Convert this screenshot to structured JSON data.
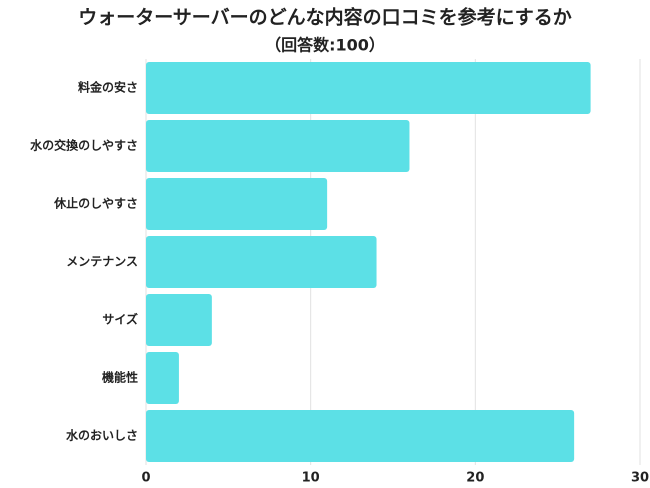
{
  "chart_data": {
    "type": "bar",
    "orientation": "horizontal",
    "title": "ウォーターサーバーのどんな内容の口コミを参考にするか",
    "subtitle": "（回答数:100）",
    "categories": [
      "料金の安さ",
      "水の交換のしやすさ",
      "休止のしやすさ",
      "メンテナンス",
      "サイズ",
      "機能性",
      "水のおいしさ"
    ],
    "values": [
      27,
      16,
      11,
      14,
      4,
      2,
      26
    ],
    "color": "#5ce0e6",
    "xlim": [
      0,
      30
    ],
    "xticks": [
      0,
      10,
      20,
      30
    ],
    "grid": true
  }
}
